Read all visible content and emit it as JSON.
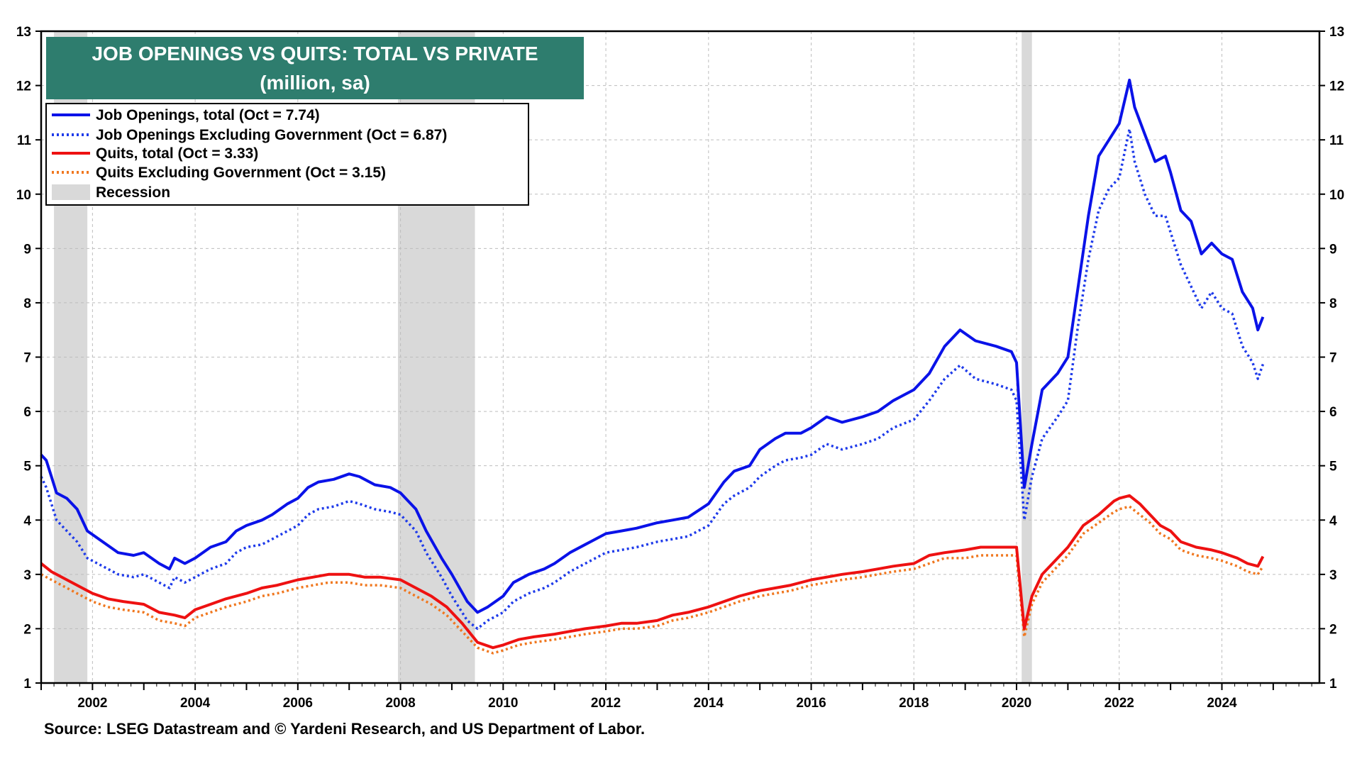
{
  "colors": {
    "job_openings_total": "#0A12E8",
    "job_openings_private": "#1F3BEA",
    "quits_total": "#EE1111",
    "quits_private": "#F07820",
    "recession": "#D9D9D9",
    "title_bg": "#2E7D6E",
    "grid": "#BDBDBD"
  },
  "chart_data": {
    "type": "line",
    "title": "JOB OPENINGS VS QUITS: TOTAL VS PRIVATE",
    "subtitle": "(million, sa)",
    "xlabel": "",
    "ylabel": "",
    "xlim": [
      2001.0,
      2025.9
    ],
    "ylim": [
      1,
      13
    ],
    "grid": true,
    "legend_position": "top-left",
    "x_ticks": [
      2002,
      2004,
      2006,
      2008,
      2010,
      2012,
      2014,
      2016,
      2018,
      2020,
      2022,
      2024
    ],
    "x_tick_labels": [
      "2002",
      "2004",
      "2006",
      "2008",
      "2010",
      "2012",
      "2014",
      "2016",
      "2018",
      "2020",
      "2022",
      "2024"
    ],
    "y_ticks": [
      1,
      2,
      3,
      4,
      5,
      6,
      7,
      8,
      9,
      10,
      11,
      12,
      13
    ],
    "y_tick_labels": [
      "1",
      "2",
      "3",
      "4",
      "5",
      "6",
      "7",
      "8",
      "9",
      "10",
      "11",
      "12",
      "13"
    ],
    "recessions": [
      [
        2001.25,
        2001.9
      ],
      [
        2007.95,
        2009.45
      ],
      [
        2020.1,
        2020.3
      ]
    ],
    "series": [
      {
        "name": "Job Openings, total",
        "legend_label": "Job Openings, total  (Oct = 7.74)",
        "style": "solid",
        "color_key": "job_openings_total",
        "x": [
          2001.0,
          2001.1,
          2001.2,
          2001.3,
          2001.5,
          2001.7,
          2001.9,
          2002.2,
          2002.5,
          2002.8,
          2003.0,
          2003.3,
          2003.5,
          2003.6,
          2003.8,
          2004.0,
          2004.3,
          2004.6,
          2004.8,
          2005.0,
          2005.3,
          2005.5,
          2005.8,
          2006.0,
          2006.2,
          2006.4,
          2006.7,
          2007.0,
          2007.2,
          2007.5,
          2007.8,
          2008.0,
          2008.3,
          2008.5,
          2008.8,
          2009.0,
          2009.3,
          2009.5,
          2009.7,
          2010.0,
          2010.2,
          2010.5,
          2010.8,
          2011.0,
          2011.3,
          2011.6,
          2012.0,
          2012.3,
          2012.6,
          2013.0,
          2013.3,
          2013.6,
          2014.0,
          2014.3,
          2014.5,
          2014.8,
          2015.0,
          2015.3,
          2015.5,
          2015.8,
          2016.0,
          2016.3,
          2016.6,
          2017.0,
          2017.3,
          2017.6,
          2018.0,
          2018.3,
          2018.6,
          2018.9,
          2019.2,
          2019.6,
          2019.9,
          2020.0,
          2020.15,
          2020.3,
          2020.5,
          2020.8,
          2021.0,
          2021.2,
          2021.4,
          2021.6,
          2021.8,
          2022.0,
          2022.2,
          2022.3,
          2022.5,
          2022.7,
          2022.9,
          2023.0,
          2023.2,
          2023.4,
          2023.6,
          2023.8,
          2024.0,
          2024.2,
          2024.4,
          2024.6,
          2024.7,
          2024.8
        ],
        "values": [
          5.2,
          5.1,
          4.8,
          4.5,
          4.4,
          4.2,
          3.8,
          3.6,
          3.4,
          3.35,
          3.4,
          3.2,
          3.1,
          3.3,
          3.2,
          3.3,
          3.5,
          3.6,
          3.8,
          3.9,
          4.0,
          4.1,
          4.3,
          4.4,
          4.6,
          4.7,
          4.75,
          4.85,
          4.8,
          4.65,
          4.6,
          4.5,
          4.2,
          3.8,
          3.3,
          3.0,
          2.5,
          2.3,
          2.4,
          2.6,
          2.85,
          3.0,
          3.1,
          3.2,
          3.4,
          3.55,
          3.75,
          3.8,
          3.85,
          3.95,
          4.0,
          4.05,
          4.3,
          4.7,
          4.9,
          5.0,
          5.3,
          5.5,
          5.6,
          5.6,
          5.7,
          5.9,
          5.8,
          5.9,
          6.0,
          6.2,
          6.4,
          6.7,
          7.2,
          7.5,
          7.3,
          7.2,
          7.1,
          6.9,
          4.6,
          5.4,
          6.4,
          6.7,
          7.0,
          8.3,
          9.6,
          10.7,
          11.0,
          11.3,
          12.1,
          11.6,
          11.1,
          10.6,
          10.7,
          10.4,
          9.7,
          9.5,
          8.9,
          9.1,
          8.9,
          8.8,
          8.2,
          7.9,
          7.5,
          7.74
        ]
      },
      {
        "name": "Job Openings Excluding Government",
        "legend_label": "Job Openings Excluding Government (Oct = 6.87)",
        "style": "dotted",
        "color_key": "job_openings_private",
        "x": [
          2001.0,
          2001.1,
          2001.2,
          2001.3,
          2001.5,
          2001.7,
          2001.9,
          2002.2,
          2002.5,
          2002.8,
          2003.0,
          2003.3,
          2003.5,
          2003.6,
          2003.8,
          2004.0,
          2004.3,
          2004.6,
          2004.8,
          2005.0,
          2005.3,
          2005.5,
          2005.8,
          2006.0,
          2006.2,
          2006.4,
          2006.7,
          2007.0,
          2007.2,
          2007.5,
          2007.8,
          2008.0,
          2008.3,
          2008.5,
          2008.8,
          2009.0,
          2009.3,
          2009.5,
          2009.7,
          2010.0,
          2010.2,
          2010.5,
          2010.8,
          2011.0,
          2011.3,
          2011.6,
          2012.0,
          2012.3,
          2012.6,
          2013.0,
          2013.3,
          2013.6,
          2014.0,
          2014.3,
          2014.5,
          2014.8,
          2015.0,
          2015.3,
          2015.5,
          2015.8,
          2016.0,
          2016.3,
          2016.6,
          2017.0,
          2017.3,
          2017.6,
          2018.0,
          2018.3,
          2018.6,
          2018.9,
          2019.2,
          2019.6,
          2019.9,
          2020.0,
          2020.15,
          2020.3,
          2020.5,
          2020.8,
          2021.0,
          2021.2,
          2021.4,
          2021.6,
          2021.8,
          2022.0,
          2022.2,
          2022.3,
          2022.5,
          2022.7,
          2022.9,
          2023.0,
          2023.2,
          2023.4,
          2023.6,
          2023.8,
          2024.0,
          2024.2,
          2024.4,
          2024.6,
          2024.7,
          2024.8
        ],
        "values": [
          4.8,
          4.6,
          4.3,
          4.0,
          3.8,
          3.6,
          3.3,
          3.15,
          3.0,
          2.95,
          3.0,
          2.85,
          2.75,
          2.95,
          2.85,
          2.95,
          3.1,
          3.2,
          3.4,
          3.5,
          3.55,
          3.65,
          3.8,
          3.9,
          4.1,
          4.2,
          4.25,
          4.35,
          4.3,
          4.2,
          4.15,
          4.1,
          3.8,
          3.4,
          2.95,
          2.6,
          2.15,
          2.0,
          2.15,
          2.3,
          2.5,
          2.65,
          2.75,
          2.85,
          3.05,
          3.2,
          3.4,
          3.45,
          3.5,
          3.6,
          3.65,
          3.7,
          3.9,
          4.3,
          4.45,
          4.6,
          4.8,
          5.0,
          5.1,
          5.15,
          5.2,
          5.4,
          5.3,
          5.4,
          5.5,
          5.7,
          5.85,
          6.2,
          6.6,
          6.85,
          6.6,
          6.5,
          6.4,
          6.2,
          4.0,
          4.8,
          5.5,
          5.9,
          6.2,
          7.6,
          8.8,
          9.7,
          10.1,
          10.3,
          11.2,
          10.6,
          10.0,
          9.6,
          9.6,
          9.3,
          8.7,
          8.3,
          7.9,
          8.2,
          7.9,
          7.8,
          7.2,
          6.9,
          6.6,
          6.87
        ]
      },
      {
        "name": "Quits, total",
        "legend_label": "Quits, total (Oct = 3.33)",
        "style": "solid",
        "color_key": "quits_total",
        "x": [
          2001.0,
          2001.2,
          2001.5,
          2001.8,
          2002.0,
          2002.3,
          2002.6,
          2003.0,
          2003.3,
          2003.6,
          2003.8,
          2004.0,
          2004.3,
          2004.6,
          2005.0,
          2005.3,
          2005.6,
          2006.0,
          2006.3,
          2006.6,
          2007.0,
          2007.3,
          2007.6,
          2008.0,
          2008.3,
          2008.6,
          2008.9,
          2009.2,
          2009.5,
          2009.8,
          2010.0,
          2010.3,
          2010.6,
          2011.0,
          2011.3,
          2011.6,
          2012.0,
          2012.3,
          2012.6,
          2013.0,
          2013.3,
          2013.6,
          2014.0,
          2014.3,
          2014.6,
          2015.0,
          2015.3,
          2015.6,
          2016.0,
          2016.3,
          2016.6,
          2017.0,
          2017.3,
          2017.6,
          2018.0,
          2018.3,
          2018.6,
          2019.0,
          2019.3,
          2019.6,
          2019.9,
          2020.0,
          2020.15,
          2020.3,
          2020.5,
          2020.8,
          2021.0,
          2021.3,
          2021.6,
          2021.9,
          2022.0,
          2022.2,
          2022.4,
          2022.6,
          2022.8,
          2023.0,
          2023.2,
          2023.5,
          2023.8,
          2024.0,
          2024.3,
          2024.5,
          2024.7,
          2024.8
        ],
        "values": [
          3.2,
          3.05,
          2.9,
          2.75,
          2.65,
          2.55,
          2.5,
          2.45,
          2.3,
          2.25,
          2.2,
          2.35,
          2.45,
          2.55,
          2.65,
          2.75,
          2.8,
          2.9,
          2.95,
          3.0,
          3.0,
          2.95,
          2.95,
          2.9,
          2.75,
          2.6,
          2.4,
          2.1,
          1.75,
          1.65,
          1.7,
          1.8,
          1.85,
          1.9,
          1.95,
          2.0,
          2.05,
          2.1,
          2.1,
          2.15,
          2.25,
          2.3,
          2.4,
          2.5,
          2.6,
          2.7,
          2.75,
          2.8,
          2.9,
          2.95,
          3.0,
          3.05,
          3.1,
          3.15,
          3.2,
          3.35,
          3.4,
          3.45,
          3.5,
          3.5,
          3.5,
          3.5,
          2.0,
          2.6,
          3.0,
          3.3,
          3.5,
          3.9,
          4.1,
          4.35,
          4.4,
          4.45,
          4.3,
          4.1,
          3.9,
          3.8,
          3.6,
          3.5,
          3.45,
          3.4,
          3.3,
          3.2,
          3.15,
          3.33
        ]
      },
      {
        "name": "Quits Excluding Government",
        "legend_label": "Quits Excluding Government (Oct = 3.15)",
        "style": "dotted",
        "color_key": "quits_private",
        "x": [
          2001.0,
          2001.2,
          2001.5,
          2001.8,
          2002.0,
          2002.3,
          2002.6,
          2003.0,
          2003.3,
          2003.6,
          2003.8,
          2004.0,
          2004.3,
          2004.6,
          2005.0,
          2005.3,
          2005.6,
          2006.0,
          2006.3,
          2006.6,
          2007.0,
          2007.3,
          2007.6,
          2008.0,
          2008.3,
          2008.6,
          2008.9,
          2009.2,
          2009.5,
          2009.8,
          2010.0,
          2010.3,
          2010.6,
          2011.0,
          2011.3,
          2011.6,
          2012.0,
          2012.3,
          2012.6,
          2013.0,
          2013.3,
          2013.6,
          2014.0,
          2014.3,
          2014.6,
          2015.0,
          2015.3,
          2015.6,
          2016.0,
          2016.3,
          2016.6,
          2017.0,
          2017.3,
          2017.6,
          2018.0,
          2018.3,
          2018.6,
          2019.0,
          2019.3,
          2019.6,
          2019.9,
          2020.0,
          2020.15,
          2020.3,
          2020.5,
          2020.8,
          2021.0,
          2021.3,
          2021.6,
          2021.9,
          2022.0,
          2022.2,
          2022.4,
          2022.6,
          2022.8,
          2023.0,
          2023.2,
          2023.5,
          2023.8,
          2024.0,
          2024.3,
          2024.5,
          2024.7,
          2024.8
        ],
        "values": [
          3.0,
          2.9,
          2.75,
          2.6,
          2.5,
          2.4,
          2.35,
          2.3,
          2.15,
          2.1,
          2.05,
          2.2,
          2.3,
          2.4,
          2.5,
          2.6,
          2.65,
          2.75,
          2.8,
          2.85,
          2.85,
          2.8,
          2.8,
          2.75,
          2.6,
          2.45,
          2.25,
          1.95,
          1.65,
          1.55,
          1.6,
          1.7,
          1.75,
          1.8,
          1.85,
          1.9,
          1.95,
          2.0,
          2.0,
          2.05,
          2.15,
          2.2,
          2.3,
          2.4,
          2.5,
          2.6,
          2.65,
          2.7,
          2.8,
          2.85,
          2.9,
          2.95,
          3.0,
          3.05,
          3.1,
          3.2,
          3.3,
          3.3,
          3.35,
          3.35,
          3.35,
          3.35,
          1.85,
          2.45,
          2.85,
          3.15,
          3.35,
          3.75,
          3.95,
          4.15,
          4.2,
          4.25,
          4.1,
          3.95,
          3.75,
          3.65,
          3.45,
          3.35,
          3.3,
          3.25,
          3.15,
          3.05,
          3.0,
          3.15
        ]
      }
    ],
    "recession_legend_label": "Recession",
    "source": "Source: LSEG Datastream and © Yardeni Research, and US Department of Labor."
  }
}
